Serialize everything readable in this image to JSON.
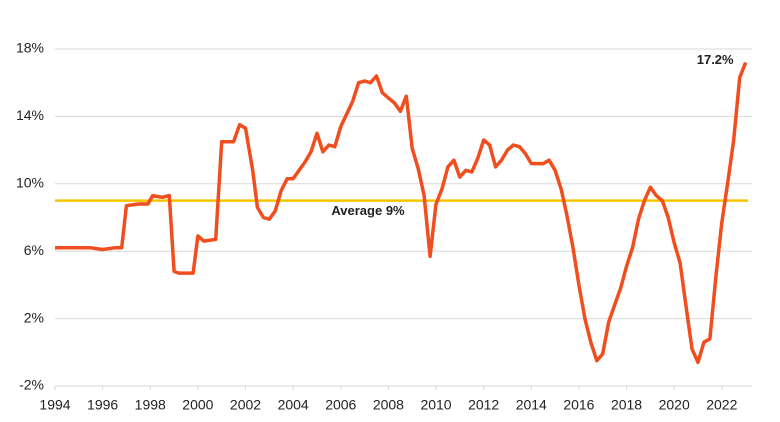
{
  "chart_data": {
    "type": "line",
    "x": [
      1994,
      1994.5,
      1995,
      1995.5,
      1996,
      1996.5,
      1996.8,
      1997.0,
      1997.5,
      1997.9,
      1998.1,
      1998.5,
      1998.8,
      1999.0,
      1999.2,
      1999.8,
      2000.0,
      2000.25,
      2000.75,
      2001.0,
      2001.5,
      2001.75,
      2002.0,
      2002.3,
      2002.5,
      2002.75,
      2003.0,
      2003.25,
      2003.5,
      2003.75,
      2004.0,
      2004.5,
      2004.75,
      2005.0,
      2005.25,
      2005.5,
      2005.75,
      2006.0,
      2006.5,
      2006.75,
      2007.0,
      2007.25,
      2007.5,
      2007.75,
      2008.0,
      2008.25,
      2008.5,
      2008.75,
      2009.0,
      2009.25,
      2009.5,
      2009.75,
      2010.0,
      2010.25,
      2010.5,
      2010.75,
      2011.0,
      2011.25,
      2011.5,
      2011.75,
      2012.0,
      2012.25,
      2012.5,
      2012.75,
      2013.0,
      2013.25,
      2013.5,
      2013.75,
      2014.0,
      2014.5,
      2014.75,
      2015.0,
      2015.25,
      2015.5,
      2015.75,
      2016.0,
      2016.25,
      2016.5,
      2016.75,
      2017.0,
      2017.25,
      2017.5,
      2017.75,
      2018.0,
      2018.25,
      2018.5,
      2018.75,
      2019.0,
      2019.25,
      2019.5,
      2019.75,
      2020.0,
      2020.25,
      2020.5,
      2020.75,
      2021.0,
      2021.25,
      2021.5,
      2021.75,
      2022.0,
      2022.25,
      2022.5,
      2022.75,
      2023.0
    ],
    "series": [
      {
        "color": "#f04e1e",
        "values": [
          6.2,
          6.2,
          6.2,
          6.2,
          6.1,
          6.2,
          6.2,
          8.7,
          8.8,
          8.8,
          9.3,
          9.2,
          9.3,
          4.8,
          4.7,
          4.7,
          6.9,
          6.6,
          6.7,
          12.5,
          12.5,
          13.5,
          13.3,
          10.8,
          8.6,
          8.0,
          7.9,
          8.4,
          9.6,
          10.3,
          10.3,
          11.3,
          11.9,
          13.0,
          11.9,
          12.3,
          12.2,
          13.4,
          14.9,
          16.0,
          16.1,
          16.0,
          16.4,
          15.4,
          15.1,
          14.8,
          14.3,
          15.2,
          12.1,
          10.9,
          9.3,
          5.7,
          8.8,
          9.7,
          11.0,
          11.4,
          10.4,
          10.8,
          10.7,
          11.5,
          12.6,
          12.3,
          11.0,
          11.4,
          12.0,
          12.3,
          12.2,
          11.8,
          11.2,
          11.2,
          11.4,
          10.8,
          9.7,
          8.1,
          6.2,
          4.0,
          2.0,
          0.6,
          -0.5,
          -0.1,
          1.8,
          2.8,
          3.8,
          5.1,
          6.2,
          7.9,
          9.0,
          9.8,
          9.3,
          9.0,
          8.0,
          6.5,
          5.3,
          2.7,
          0.2,
          -0.6,
          0.6,
          0.8,
          4.5,
          7.7,
          10.1,
          12.6,
          16.3,
          17.2
        ]
      }
    ],
    "end_label": "17.2%",
    "average": {
      "value": 9,
      "label": "Average 9%",
      "color": "#f5c400"
    },
    "xlim": [
      1994,
      2023.1
    ],
    "xticks": [
      1994,
      1996,
      1998,
      2000,
      2002,
      2004,
      2006,
      2008,
      2010,
      2012,
      2014,
      2016,
      2018,
      2020,
      2022
    ],
    "ylim": [
      -2,
      18
    ],
    "yticks": [
      {
        "value": -2,
        "label": "-2%"
      },
      {
        "value": 2,
        "label": "2%"
      },
      {
        "value": 6,
        "label": "6%"
      },
      {
        "value": 10,
        "label": "10%"
      },
      {
        "value": 14,
        "label": "14%"
      },
      {
        "value": 18,
        "label": "18%"
      }
    ],
    "grid": true
  }
}
